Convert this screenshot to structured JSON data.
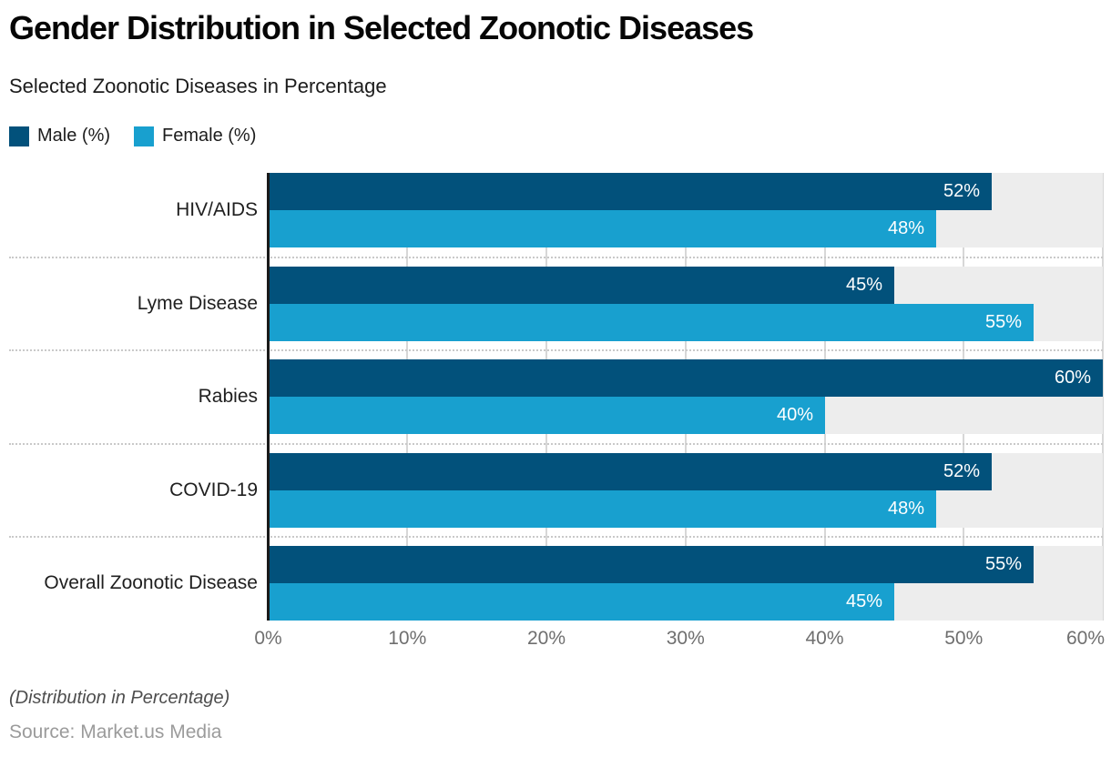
{
  "header": {
    "title": "Gender Distribution in Selected Zoonotic Diseases",
    "subtitle": "Selected Zoonotic Diseases in Percentage"
  },
  "legend": [
    {
      "label": "Male (%)",
      "color": "#02517b"
    },
    {
      "label": "Female (%)",
      "color": "#18a0cf"
    }
  ],
  "chart_data": {
    "type": "bar",
    "orientation": "horizontal",
    "title": "Gender Distribution in Selected Zoonotic Diseases",
    "subtitle": "Selected Zoonotic Diseases in Percentage",
    "categories": [
      "HIV/AIDS",
      "Lyme Disease",
      "Rabies",
      "COVID-19",
      "Overall Zoonotic Disease"
    ],
    "series": [
      {
        "name": "Male (%)",
        "color": "#02517b",
        "values": [
          52,
          45,
          60,
          52,
          55
        ]
      },
      {
        "name": "Female (%)",
        "color": "#18a0cf",
        "values": [
          48,
          55,
          40,
          48,
          45
        ]
      }
    ],
    "value_suffix": "%",
    "xlim": [
      0,
      60
    ],
    "x_ticks": [
      "0%",
      "10%",
      "20%",
      "30%",
      "40%",
      "50%",
      "60%"
    ],
    "grid": true,
    "legend_position": "top-left"
  },
  "footer": {
    "note": "(Distribution in Percentage)",
    "source": "Source: Market.us Media"
  },
  "colors": {
    "male": "#02517b",
    "female": "#18a0cf",
    "track": "#ededed",
    "gridline": "#d7d7d7",
    "separator": "#c9c9c9",
    "axis": "#1a1a1a",
    "tick_label": "#6f6f6f"
  }
}
